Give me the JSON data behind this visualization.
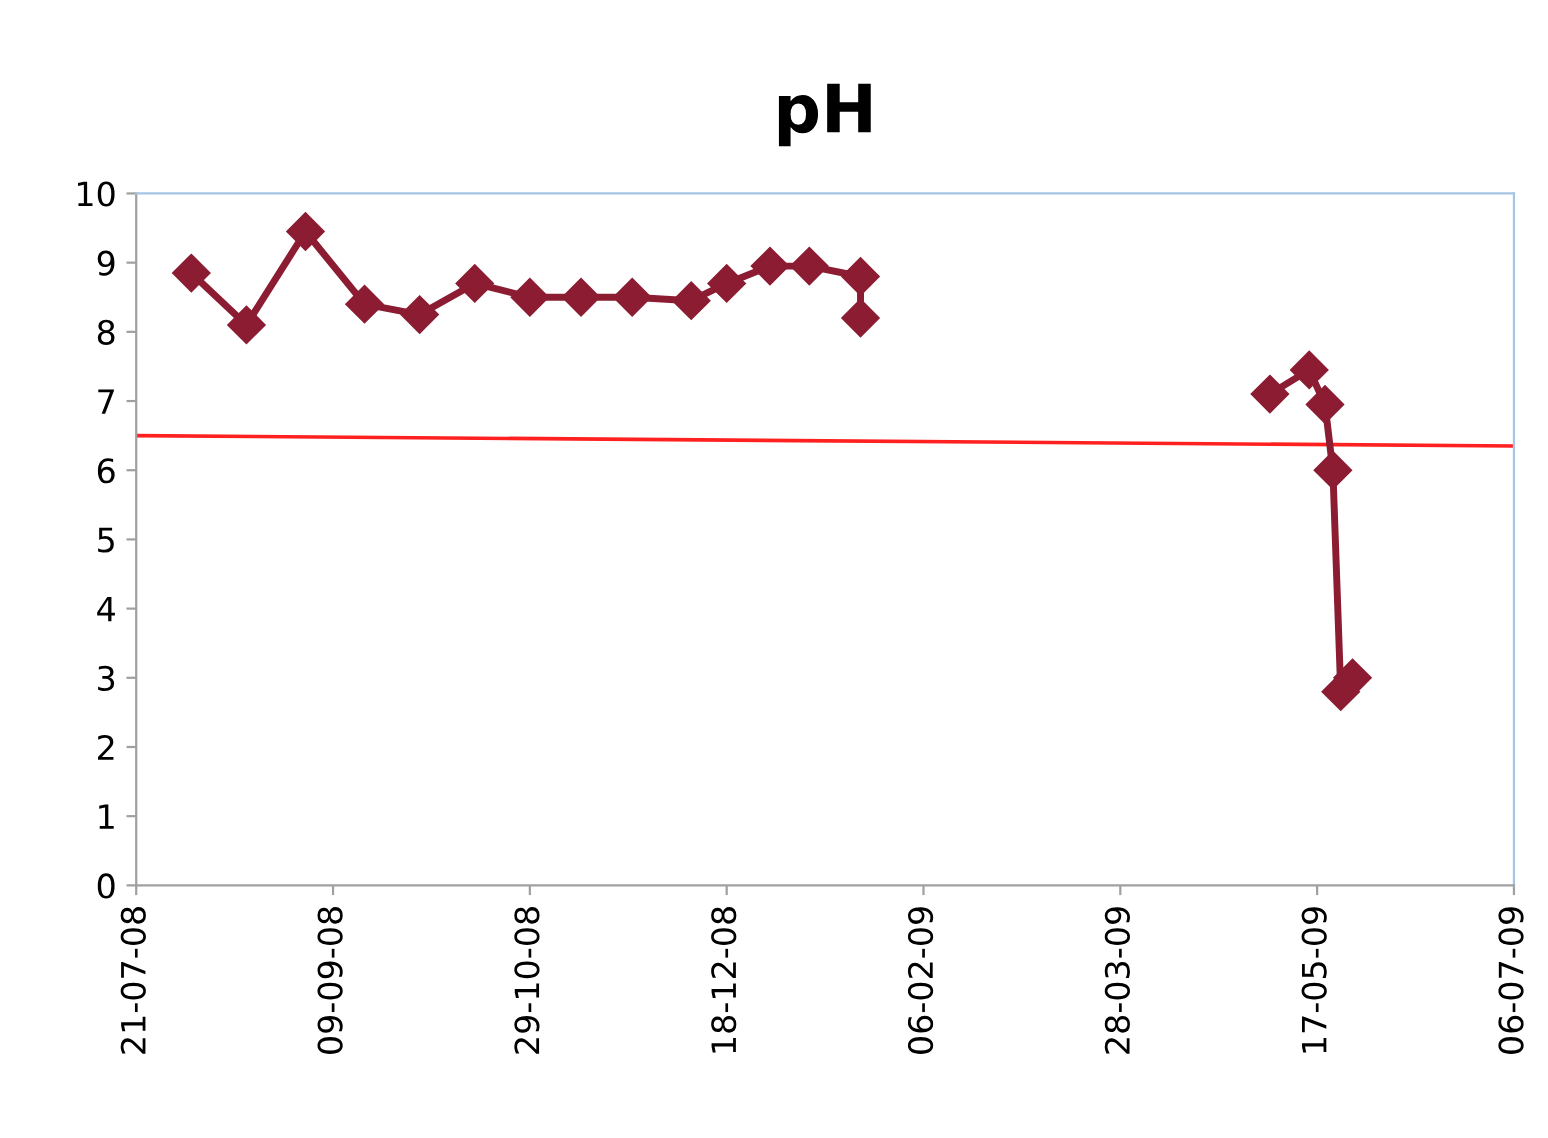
{
  "chart_data": {
    "type": "line",
    "title": "pH",
    "series": [
      {
        "color": "#8b1c32",
        "marker": "diamond",
        "x": [
          "2008-08-04",
          "2008-08-18",
          "2008-09-02",
          "2008-09-17",
          "2008-10-01",
          "2008-10-15",
          "2008-10-29",
          "2008-11-11",
          "2008-11-24",
          "2008-12-09",
          "2008-12-18",
          "2008-12-29",
          "2009-01-08",
          "2009-01-21",
          "2009-01-21",
          "2009-03-01",
          "2009-05-05",
          "2009-05-15",
          "2009-05-19",
          "2009-05-21",
          "2009-05-23",
          "2009-05-26"
        ],
        "values": [
          8.85,
          8.1,
          9.45,
          8.4,
          8.25,
          8.7,
          8.5,
          8.5,
          8.5,
          8.45,
          8.7,
          8.95,
          8.95,
          8.8,
          8.2,
          null,
          7.1,
          7.45,
          6.95,
          6.0,
          2.8,
          3.0
        ]
      },
      {
        "color": "#ff2020",
        "marker": "none",
        "x": [
          "2008-07-21",
          "2009-07-06"
        ],
        "values": [
          6.5,
          6.35
        ]
      }
    ],
    "xlim": [
      "2008-07-21",
      "2009-07-06"
    ],
    "xticks": [
      {
        "value": "2008-07-21",
        "label": "21-07-08"
      },
      {
        "value": "2008-09-09",
        "label": "09-09-08"
      },
      {
        "value": "2008-10-29",
        "label": "29-10-08"
      },
      {
        "value": "2008-12-18",
        "label": "18-12-08"
      },
      {
        "value": "2009-02-06",
        "label": "06-02-09"
      },
      {
        "value": "2009-03-28",
        "label": "28-03-09"
      },
      {
        "value": "2009-05-17",
        "label": "17-05-09"
      },
      {
        "value": "2009-07-06",
        "label": "06-07-09"
      }
    ],
    "ylim": [
      0,
      10
    ],
    "yticks": [
      0,
      1,
      2,
      3,
      4,
      5,
      6,
      7,
      8,
      9,
      10
    ],
    "grid": false,
    "legend": false,
    "line_style": "solid"
  }
}
